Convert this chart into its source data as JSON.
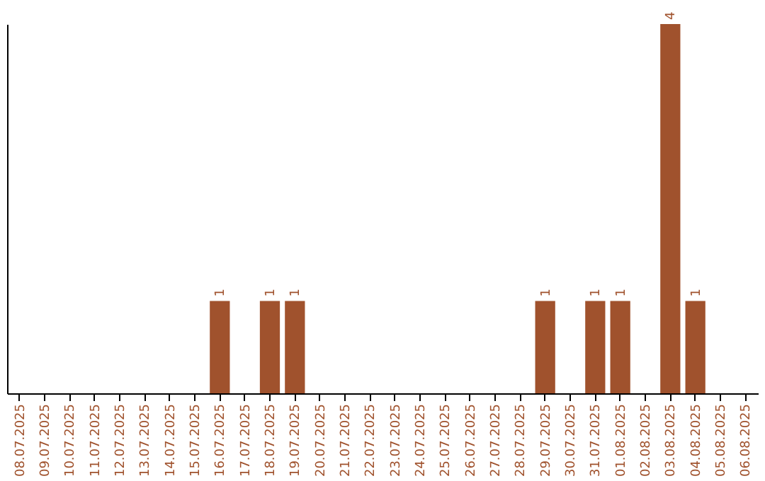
{
  "chart_data": {
    "type": "bar",
    "categories": [
      "08.07.2025",
      "09.07.2025",
      "10.07.2025",
      "11.07.2025",
      "12.07.2025",
      "13.07.2025",
      "14.07.2025",
      "15.07.2025",
      "16.07.2025",
      "17.07.2025",
      "18.07.2025",
      "19.07.2025",
      "20.07.2025",
      "21.07.2025",
      "22.07.2025",
      "23.07.2025",
      "24.07.2025",
      "25.07.2025",
      "26.07.2025",
      "27.07.2025",
      "28.07.2025",
      "29.07.2025",
      "30.07.2025",
      "31.07.2025",
      "01.08.2025",
      "02.08.2025",
      "03.08.2025",
      "04.08.2025",
      "05.08.2025",
      "06.08.2025"
    ],
    "values": [
      0,
      0,
      0,
      0,
      0,
      0,
      0,
      0,
      1,
      0,
      1,
      1,
      0,
      0,
      0,
      0,
      0,
      0,
      0,
      0,
      0,
      1,
      0,
      1,
      1,
      0,
      4,
      1,
      0,
      0
    ],
    "value_labels": [
      null,
      null,
      null,
      null,
      null,
      null,
      null,
      null,
      "1",
      null,
      "1",
      "1",
      null,
      null,
      null,
      null,
      null,
      null,
      null,
      null,
      null,
      "1",
      null,
      "1",
      "1",
      null,
      "4",
      "1",
      null,
      null
    ],
    "color": "#a0522d",
    "tick_labels": "x",
    "grid": false
  }
}
